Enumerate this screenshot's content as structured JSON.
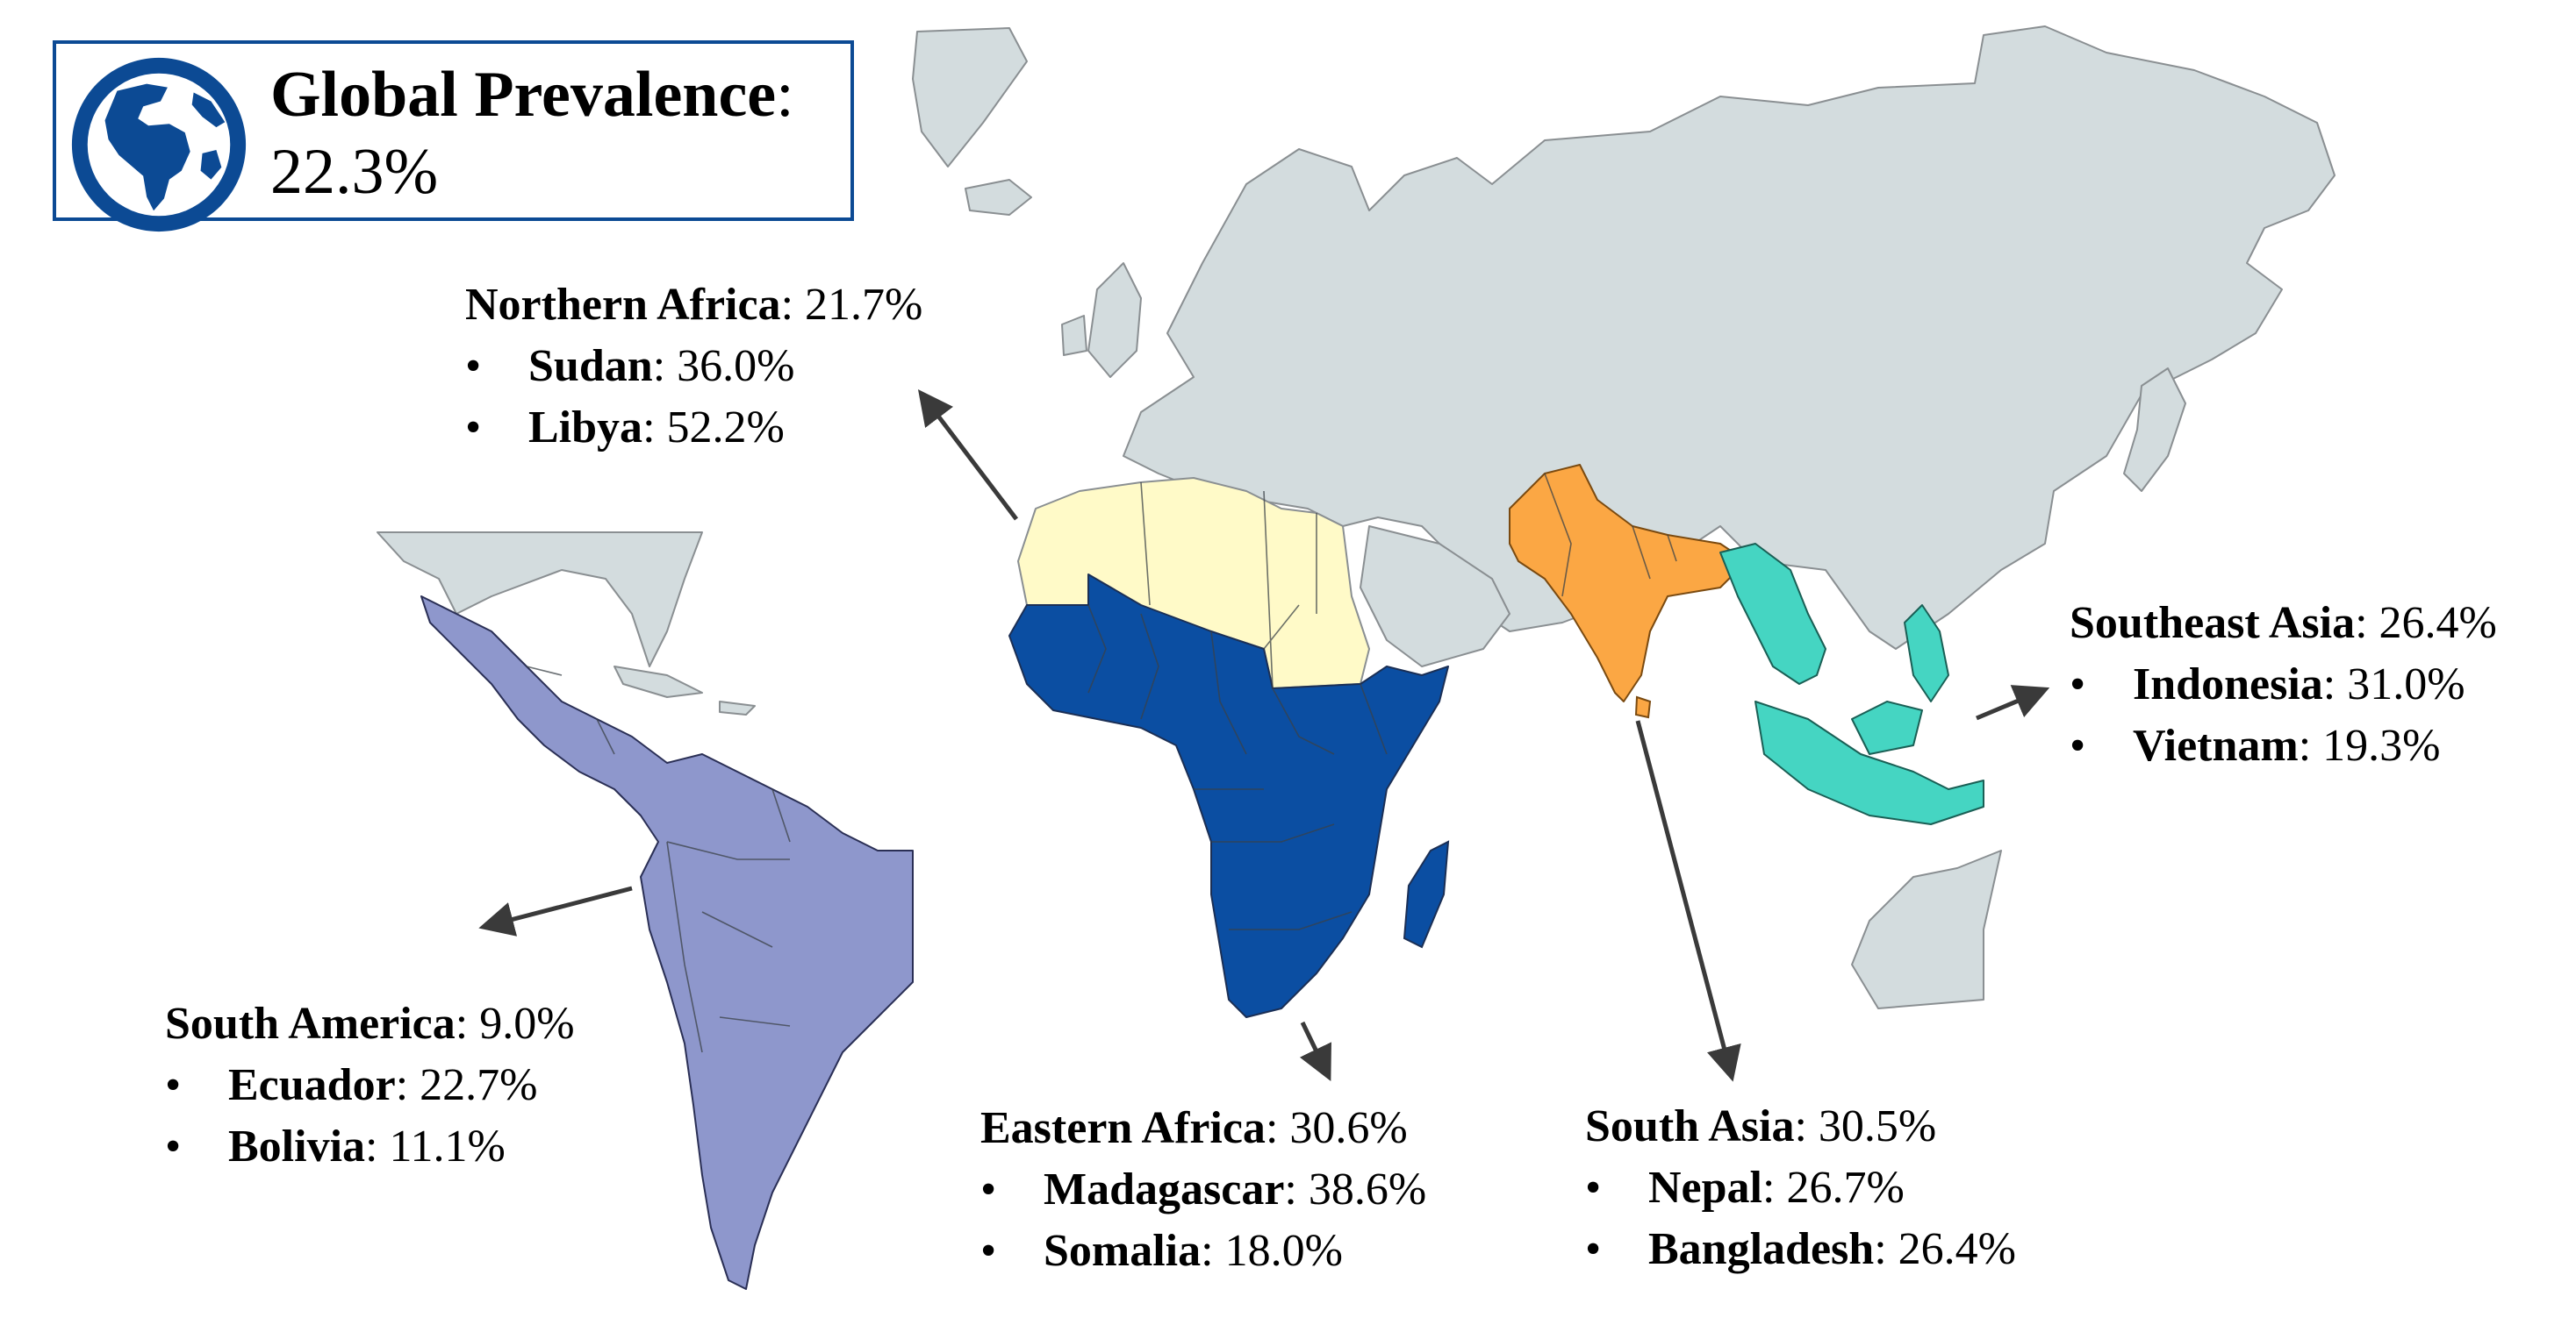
{
  "global": {
    "title": "Global Prevalence",
    "colon": ":",
    "value": "22.3%"
  },
  "regions": {
    "northern_africa": {
      "name": "Northern Africa",
      "value": "21.7%",
      "color": "#fffac8",
      "countries": [
        {
          "name": "Sudan",
          "value": "36.0%"
        },
        {
          "name": "Libya",
          "value": "52.2%"
        }
      ]
    },
    "south_america": {
      "name": "South America",
      "value": "9.0%",
      "color": "#8e97cc",
      "countries": [
        {
          "name": "Ecuador",
          "value": "22.7%"
        },
        {
          "name": "Bolivia",
          "value": "11.1%"
        }
      ]
    },
    "eastern_africa": {
      "name": "Eastern Africa",
      "value": "30.6%",
      "color": "#0b4ea2",
      "countries": [
        {
          "name": "Madagascar",
          "value": "38.6%"
        },
        {
          "name": "Somalia",
          "value": "18.0%"
        }
      ]
    },
    "south_asia": {
      "name": "South Asia",
      "value": "30.5%",
      "color": "#fba744",
      "countries": [
        {
          "name": "Nepal",
          "value": "26.7%"
        },
        {
          "name": "Bangladesh",
          "value": "26.4%"
        }
      ]
    },
    "southeast_asia": {
      "name": "Southeast Asia",
      "value": "26.4%",
      "color": "#45d5c2",
      "countries": [
        {
          "name": "Indonesia",
          "value": "31.0%"
        },
        {
          "name": "Vietnam",
          "value": "19.3%"
        }
      ]
    }
  },
  "colors": {
    "land": "#d3dcde",
    "border": "#8a8f92",
    "accent": "#0c4a94",
    "arrow": "#3a3a3a"
  },
  "icons": {
    "globe": "globe-icon"
  }
}
